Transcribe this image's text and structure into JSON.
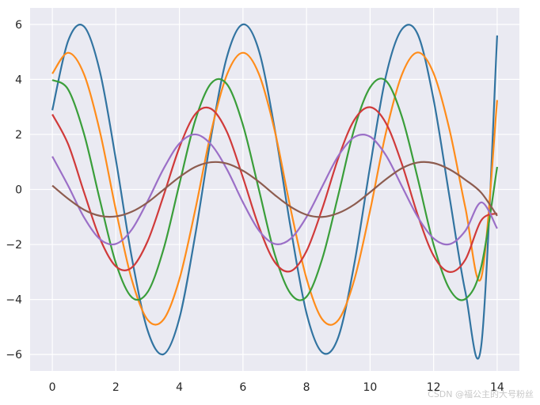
{
  "watermark": "CSDN @福公主的大号粉丝",
  "chart_data": {
    "type": "line",
    "title": "",
    "xlabel": "",
    "ylabel": "",
    "xlim": [
      -0.7,
      14.7
    ],
    "ylim": [
      -6.6,
      6.6
    ],
    "xticks": [
      0,
      2,
      4,
      6,
      8,
      10,
      12,
      14
    ],
    "yticks": [
      -6,
      -4,
      -2,
      0,
      2,
      4,
      6
    ],
    "xtick_labels": [
      "0",
      "2",
      "4",
      "6",
      "8",
      "10",
      "12",
      "14"
    ],
    "ytick_labels": [
      "−6",
      "−4",
      "−2",
      "0",
      "2",
      "4",
      "6"
    ],
    "grid": true,
    "background": "#eaeaf2",
    "grid_color": "#ffffff",
    "x": [
      0,
      0.5,
      1,
      1.5,
      2,
      2.5,
      3,
      3.5,
      4,
      4.5,
      5,
      5.5,
      6,
      6.5,
      7,
      7.5,
      8,
      8.5,
      9,
      9.5,
      10,
      10.5,
      11,
      11.5,
      12,
      12.5,
      13,
      13.5,
      14
    ],
    "series": [
      {
        "color": "#3274a1",
        "values": [
          2.88,
          5.41,
          5.92,
          4.27,
          1.08,
          -2.47,
          -5.13,
          -5.99,
          -4.68,
          -1.64,
          1.94,
          4.84,
          6.0,
          5.05,
          2.19,
          -1.39,
          -4.5,
          -5.93,
          -5.37,
          -2.73,
          0.83,
          4.13,
          5.82,
          5.64,
          3.26,
          -0.27,
          -3.73,
          -5.67,
          5.6
        ]
      },
      {
        "color": "#ff8c1a",
        "values": [
          4.21,
          4.97,
          4.18,
          2.09,
          -0.75,
          -3.28,
          -4.74,
          -4.73,
          -3.26,
          -0.73,
          2.11,
          4.19,
          4.97,
          4.2,
          2.13,
          -0.71,
          -3.24,
          -4.73,
          -4.75,
          -3.3,
          -0.77,
          2.07,
          4.17,
          4.98,
          4.22,
          2.17,
          -0.67,
          -3.2,
          3.25
        ]
      },
      {
        "color": "#3a9e3a",
        "values": [
          3.98,
          3.63,
          2.01,
          -0.4,
          -2.68,
          -3.92,
          -3.73,
          -2.17,
          0.2,
          2.52,
          3.86,
          3.82,
          2.34,
          0.0,
          -2.36,
          -3.79,
          -3.9,
          -2.5,
          -0.2,
          2.19,
          3.71,
          3.95,
          2.65,
          0.4,
          -2.01,
          -3.62,
          -3.98,
          -2.8,
          0.82
        ]
      },
      {
        "color": "#d03a3a",
        "values": [
          2.73,
          1.64,
          -0.11,
          -1.79,
          -2.8,
          -2.84,
          -1.88,
          -0.23,
          1.53,
          2.74,
          2.93,
          2.08,
          0.43,
          -1.35,
          -2.64,
          -2.97,
          -2.24,
          -0.68,
          1.14,
          2.52,
          2.99,
          2.41,
          0.93,
          -0.93,
          -2.41,
          -3.0,
          -2.55,
          -1.12,
          -0.87
        ]
      },
      {
        "color": "#9b6fc7",
        "values": [
          1.2,
          0.13,
          -1.02,
          -1.81,
          -1.98,
          -1.46,
          -0.42,
          0.75,
          1.67,
          2.0,
          1.63,
          0.72,
          -0.47,
          -1.49,
          -1.98,
          -1.79,
          -1.0,
          0.12,
          1.22,
          1.9,
          1.92,
          1.24,
          0.12,
          -1.0,
          -1.78,
          -1.99,
          -1.5,
          -0.47,
          -1.42
        ]
      },
      {
        "color": "#8d5c4f",
        "values": [
          0.14,
          -0.34,
          -0.74,
          -0.96,
          -0.98,
          -0.81,
          -0.47,
          -0.01,
          0.45,
          0.82,
          0.99,
          0.94,
          0.68,
          0.28,
          -0.2,
          -0.63,
          -0.92,
          -1.0,
          -0.86,
          -0.55,
          -0.1,
          0.37,
          0.77,
          0.98,
          0.96,
          0.73,
          0.35,
          -0.12,
          -0.96
        ]
      }
    ]
  }
}
